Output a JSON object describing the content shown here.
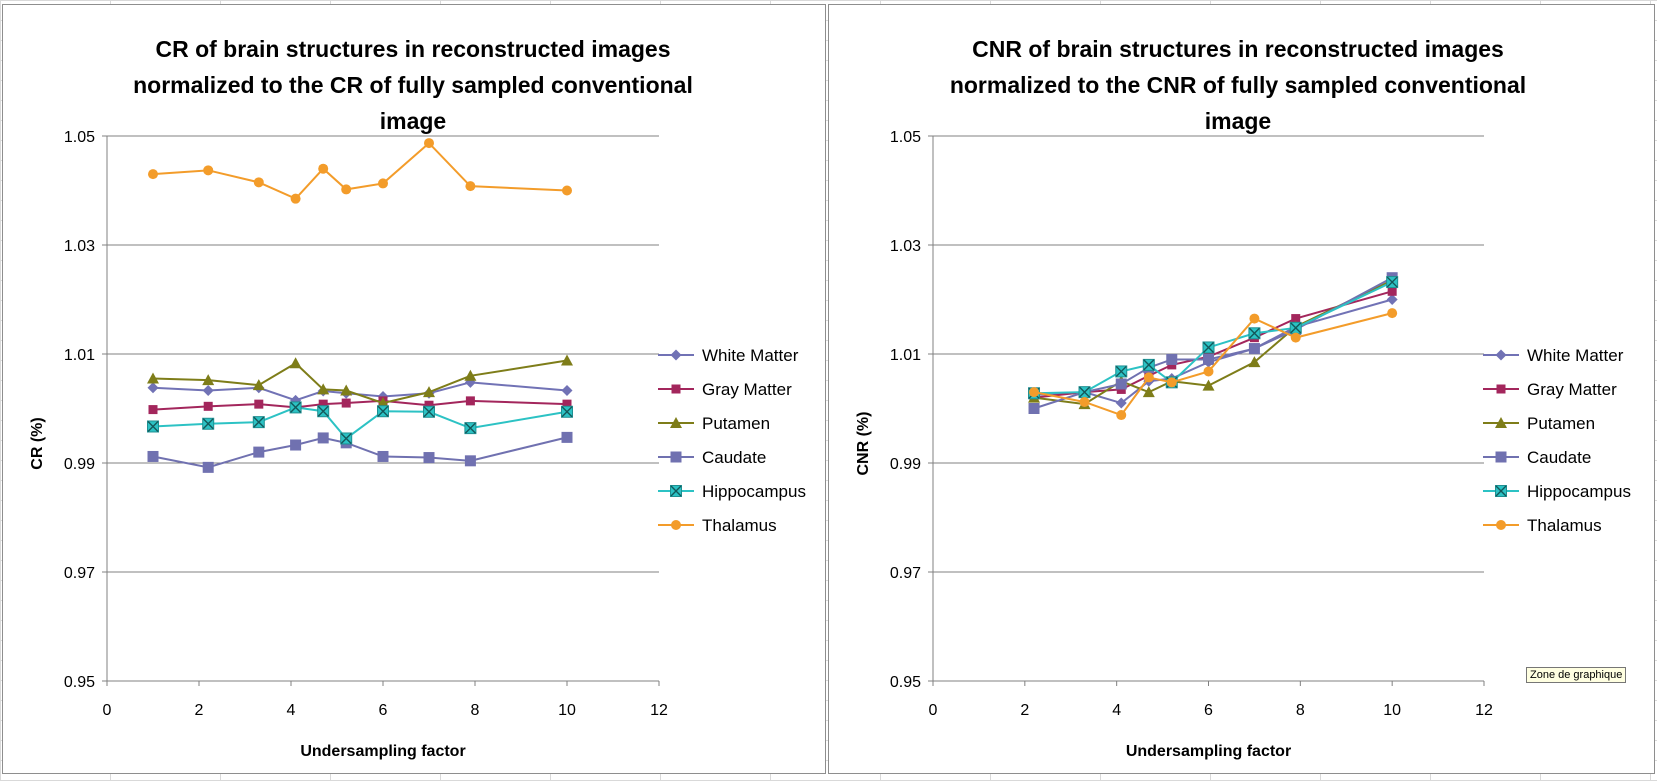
{
  "tooltip": "Zone de graphique",
  "chart_data": [
    {
      "type": "line",
      "title": [
        "CR of brain structures in reconstructed images",
        "normalized to the CR of fully sampled conventional",
        "image"
      ],
      "xlabel": "Undersampling factor",
      "ylabel": "CR (%)",
      "xlim": [
        0,
        12
      ],
      "xticks": [
        0,
        2,
        4,
        6,
        8,
        10,
        12
      ],
      "ylim": [
        0.95,
        1.05
      ],
      "yticks": [
        0.95,
        0.97,
        0.99,
        1.01,
        1.03,
        1.05
      ],
      "ytick_labels": [
        "0.95",
        "0.97",
        "0.99",
        "1.01",
        "1.03",
        "1.05"
      ],
      "grid": "horizontal",
      "legend": "right",
      "series": [
        {
          "name": "White Matter",
          "color": "#7172b5",
          "marker": "diamond",
          "x": [
            1,
            2.2,
            3.3,
            4.1,
            4.7,
            5.2,
            6,
            7,
            7.9,
            10
          ],
          "y": [
            1.0038,
            1.0033,
            1.0038,
            1.0015,
            1.0032,
            1.0028,
            1.0022,
            1.0028,
            1.0048,
            1.0033
          ]
        },
        {
          "name": "Gray Matter",
          "color": "#a3265c",
          "marker": "square",
          "x": [
            1,
            2.2,
            3.3,
            4.1,
            4.7,
            5.2,
            6,
            7,
            7.9,
            10
          ],
          "y": [
            0.9998,
            1.0004,
            1.0008,
            1.0002,
            1.0008,
            1.001,
            1.0014,
            1.0006,
            1.0014,
            1.0008
          ]
        },
        {
          "name": "Putamen",
          "color": "#7e7d19",
          "marker": "triangle",
          "x": [
            1,
            2.2,
            3.3,
            4.1,
            4.7,
            5.2,
            6,
            7,
            7.9,
            10
          ],
          "y": [
            1.0055,
            1.0052,
            1.0043,
            1.0083,
            1.0035,
            1.0033,
            1.001,
            1.003,
            1.006,
            1.0088
          ]
        },
        {
          "name": "Caudate",
          "color": "#7071b0",
          "marker": "square-lg",
          "x": [
            1,
            2.2,
            3.3,
            4.1,
            4.7,
            5.2,
            6,
            7,
            7.9,
            10
          ],
          "y": [
            0.9912,
            0.9892,
            0.992,
            0.9933,
            0.9946,
            0.9937,
            0.9912,
            0.991,
            0.9904,
            0.9947
          ]
        },
        {
          "name": "Hippocampus",
          "color": "#2cc2c4",
          "marker": "xbox",
          "x": [
            1,
            2.2,
            3.3,
            4.1,
            4.7,
            5.2,
            6,
            7,
            7.9,
            10
          ],
          "y": [
            0.9967,
            0.9972,
            0.9975,
            1.0002,
            0.9995,
            0.9945,
            0.9995,
            0.9994,
            0.9964,
            0.9994
          ]
        },
        {
          "name": "Thalamus",
          "color": "#f39c2a",
          "marker": "circle",
          "x": [
            1,
            2.2,
            3.3,
            4.1,
            4.7,
            5.2,
            6,
            7,
            7.9,
            10
          ],
          "y": [
            1.043,
            1.0437,
            1.0415,
            1.0385,
            1.044,
            1.0402,
            1.0413,
            1.0487,
            1.0408,
            1.04
          ]
        }
      ]
    },
    {
      "type": "line",
      "title": [
        "CNR of brain structures in reconstructed images",
        "normalized to the CNR of fully sampled conventional",
        "image"
      ],
      "xlabel": "Undersampling factor",
      "ylabel": "CNR (%)",
      "xlim": [
        0,
        12
      ],
      "xticks": [
        0,
        2,
        4,
        6,
        8,
        10,
        12
      ],
      "ylim": [
        0.95,
        1.05
      ],
      "yticks": [
        0.95,
        0.97,
        0.99,
        1.01,
        1.03,
        1.05
      ],
      "ytick_labels": [
        "0.95",
        "0.97",
        "0.99",
        "1.01",
        "1.03",
        "1.05"
      ],
      "grid": "horizontal",
      "legend": "right",
      "series": [
        {
          "name": "White Matter",
          "color": "#7172b5",
          "marker": "diamond",
          "x": [
            2.2,
            3.3,
            4.1,
            4.7,
            5.2,
            6,
            7,
            7.9,
            10
          ],
          "y": [
            1.0025,
            1.003,
            1.001,
            1.005,
            1.0055,
            1.0085,
            1.011,
            1.015,
            1.02
          ]
        },
        {
          "name": "Gray Matter",
          "color": "#a3265c",
          "marker": "square",
          "x": [
            2.2,
            3.3,
            4.1,
            4.7,
            5.2,
            6,
            7,
            7.9,
            10
          ],
          "y": [
            1.002,
            1.003,
            1.0035,
            1.006,
            1.008,
            1.0095,
            1.013,
            1.0165,
            1.0215
          ]
        },
        {
          "name": "Putamen",
          "color": "#7e7d19",
          "marker": "triangle",
          "x": [
            2.2,
            3.3,
            4.1,
            4.7,
            5.2,
            6,
            7,
            7.9,
            10
          ],
          "y": [
            1.002,
            1.0008,
            1.005,
            1.003,
            1.005,
            1.0042,
            1.0085,
            1.015,
            1.0235
          ]
        },
        {
          "name": "Caudate",
          "color": "#7071b0",
          "marker": "square-lg",
          "x": [
            2.2,
            3.3,
            4.1,
            4.7,
            5.2,
            6,
            7,
            7.9,
            10
          ],
          "y": [
            1.0,
            1.003,
            1.0045,
            1.0075,
            1.009,
            1.009,
            1.011,
            1.0145,
            1.024
          ]
        },
        {
          "name": "Hippocampus",
          "color": "#2cc2c4",
          "marker": "xbox",
          "x": [
            2.2,
            3.3,
            4.1,
            4.7,
            5.2,
            6,
            7,
            7.9,
            10
          ],
          "y": [
            1.0028,
            1.003,
            1.0068,
            1.008,
            1.0048,
            1.0112,
            1.0138,
            1.0148,
            1.0232
          ]
        },
        {
          "name": "Thalamus",
          "color": "#f39c2a",
          "marker": "circle",
          "x": [
            2.2,
            3.3,
            4.1,
            4.7,
            5.2,
            6,
            7,
            7.9,
            10
          ],
          "y": [
            1.003,
            1.0012,
            0.9988,
            1.0057,
            1.0048,
            1.0068,
            1.0165,
            1.013,
            1.0175
          ]
        }
      ]
    }
  ]
}
